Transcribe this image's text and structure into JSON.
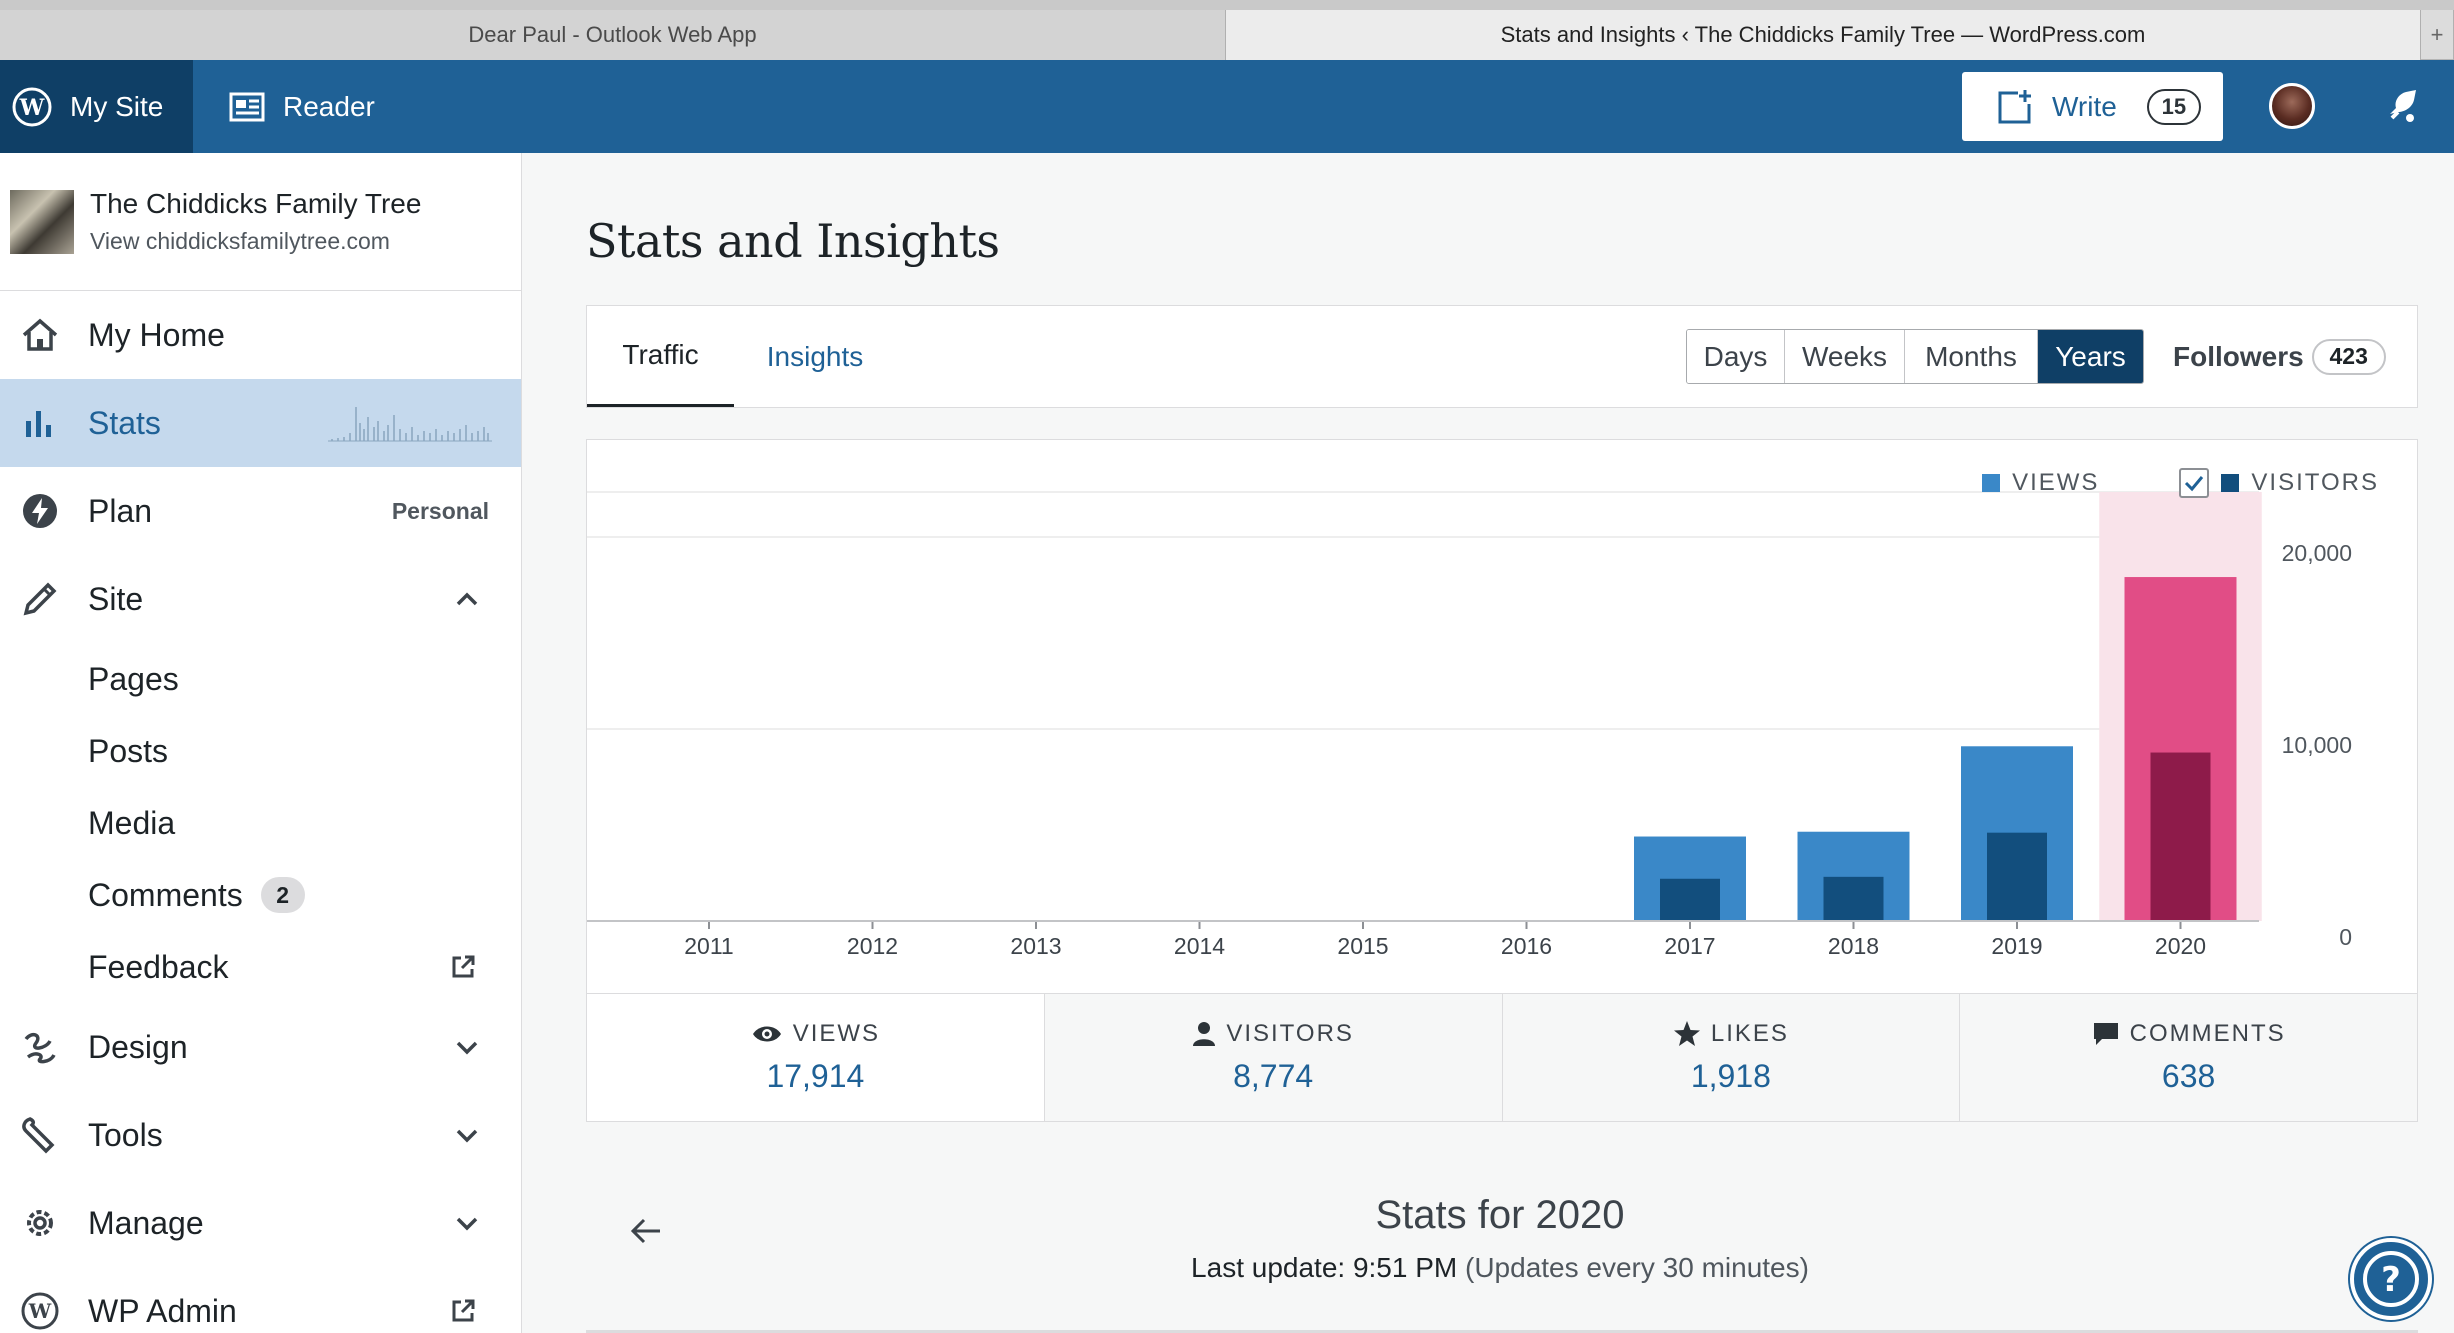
{
  "browser": {
    "tabs": [
      {
        "title": "Dear Paul - Outlook Web App"
      },
      {
        "title": "Stats and Insights ‹ The Chiddicks Family Tree — WordPress.com"
      }
    ],
    "new_tab_label": "+"
  },
  "masterbar": {
    "my_site_label": "My Site",
    "reader_label": "Reader",
    "write_label": "Write",
    "write_count": "15"
  },
  "sidebar": {
    "site_title": "The Chiddicks Family Tree",
    "site_url": "View chiddicksfamilytree.com",
    "items": {
      "home": "My Home",
      "stats": "Stats",
      "plan": "Plan",
      "plan_badge": "Personal",
      "site": "Site",
      "pages": "Pages",
      "posts": "Posts",
      "media": "Media",
      "comments": "Comments",
      "comments_count": "2",
      "feedback": "Feedback",
      "design": "Design",
      "tools": "Tools",
      "manage": "Manage",
      "wp_admin": "WP Admin"
    }
  },
  "main": {
    "title": "Stats and Insights",
    "tabs": {
      "traffic": "Traffic",
      "insights": "Insights"
    },
    "periods": [
      "Days",
      "Weeks",
      "Months",
      "Years"
    ],
    "selected_period": "Years",
    "followers_label": "Followers",
    "followers_count": "423"
  },
  "chart_data": {
    "type": "bar",
    "categories": [
      "2011",
      "2012",
      "2013",
      "2014",
      "2015",
      "2016",
      "2017",
      "2018",
      "2019",
      "2020"
    ],
    "series": [
      {
        "name": "VIEWS",
        "values": [
          0,
          0,
          0,
          0,
          0,
          0,
          4400,
          4650,
          9100,
          17914
        ]
      },
      {
        "name": "VISITORS",
        "values": [
          0,
          0,
          0,
          0,
          0,
          0,
          2200,
          2300,
          4600,
          8774
        ]
      }
    ],
    "highlighted_category": "2020",
    "y_ticks": [
      "0",
      "10,000",
      "20,000"
    ],
    "ylim": [
      0,
      20000
    ],
    "legend_position": "top-right",
    "visitors_checked": true,
    "colors": {
      "views": "#3a88c8",
      "visitors": "#124e7d",
      "views_selected": "#e14d86",
      "visitors_selected": "#8e1b4a",
      "selected_band": "#f9e3ea",
      "grid": "#eeeeee"
    }
  },
  "summary": {
    "views_label": "VIEWS",
    "views_value": "17,914",
    "visitors_label": "VISITORS",
    "visitors_value": "8,774",
    "likes_label": "LIKES",
    "likes_value": "1,918",
    "comments_label": "COMMENTS",
    "comments_value": "638"
  },
  "period_detail": {
    "title": "Stats for 2020",
    "last_update_prefix": "Last update: 9:51 PM",
    "last_update_note": " (Updates every 30 minutes)"
  }
}
